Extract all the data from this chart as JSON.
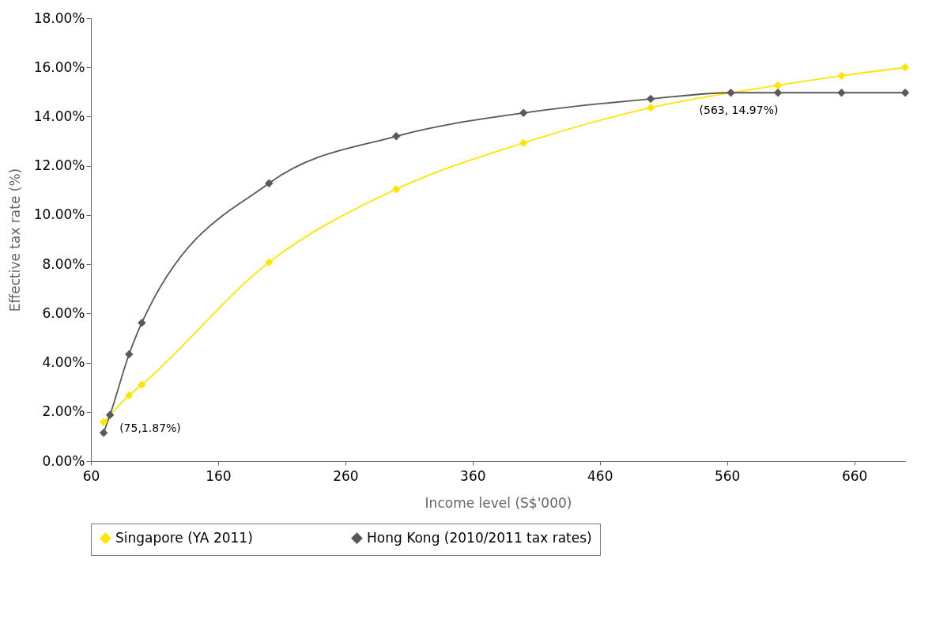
{
  "chart_data": {
    "type": "line",
    "xlabel": "Income level (S$'000)",
    "ylabel": "Effective tax rate (%)",
    "xlim": [
      60,
      700
    ],
    "xticks": [
      60,
      160,
      260,
      360,
      460,
      560,
      660
    ],
    "ylim": [
      0,
      18
    ],
    "yticks": [
      {
        "value": 0,
        "label": "0.00%"
      },
      {
        "value": 2,
        "label": "2.00%"
      },
      {
        "value": 4,
        "label": "4.00%"
      },
      {
        "value": 6,
        "label": "6.00%"
      },
      {
        "value": 8,
        "label": "8.00%"
      },
      {
        "value": 10,
        "label": "10.00%"
      },
      {
        "value": 12,
        "label": "12.00%"
      },
      {
        "value": 14,
        "label": "14.00%"
      },
      {
        "value": 16,
        "label": "16.00%"
      },
      {
        "value": 18,
        "label": "18.00%"
      }
    ],
    "series": [
      {
        "name": "Singapore (YA 2011)",
        "color": "#ffe600",
        "x": [
          70,
          90,
          100,
          200,
          300,
          400,
          500,
          600,
          650,
          700
        ],
        "values": [
          1.58,
          2.67,
          3.1,
          8.08,
          11.05,
          12.93,
          14.36,
          15.27,
          15.66,
          16.0
        ]
      },
      {
        "name": "Hong Kong (2010/2011 tax rates)",
        "color": "#595959",
        "x": [
          70,
          75,
          90,
          100,
          200,
          300,
          400,
          500,
          563,
          600,
          650,
          700
        ],
        "values": [
          1.15,
          1.87,
          4.34,
          5.62,
          11.29,
          13.2,
          14.15,
          14.72,
          14.97,
          14.97,
          14.97,
          14.97
        ]
      }
    ],
    "marker": "diamond",
    "grid": false,
    "legend": "bottom",
    "annotations": [
      {
        "text": "(75,1.87%)",
        "x": 75,
        "y": 1.87
      },
      {
        "text": "(563, 14.97%)",
        "x": 563,
        "y": 14.97
      }
    ]
  }
}
